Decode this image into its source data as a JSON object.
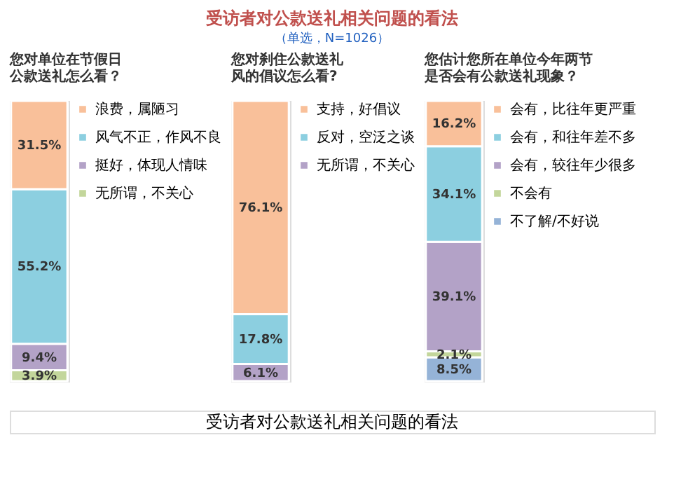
{
  "chart_data": [
    {
      "type": "bar",
      "stacked": true,
      "title": "您对单位在节假日公款送礼怎么看？",
      "annotations": [
        "受访者对公款送礼相关问题的看法",
        "（单选，N=1026）",
        "受访者对公款送礼相关问题的看法"
      ],
      "categories": [
        null
      ],
      "legend": "right",
      "series": [
        {
          "name": "无所谓，不关心",
          "color": "#c3d69b",
          "values": [
            3.9
          ],
          "value_labels": [
            "3.9%"
          ]
        },
        {
          "name": "挺好，体现人情味",
          "color": "#b3a2c7",
          "values": [
            9.4
          ],
          "value_labels": [
            "9.4%"
          ]
        },
        {
          "name": "风气不正，作风不良",
          "color": "#8ccfe0",
          "values": [
            55.2
          ],
          "value_labels": [
            "55.2%"
          ]
        },
        {
          "name": "浪费，属陋习",
          "color": "#f9c09a",
          "values": [
            31.5
          ],
          "value_labels": [
            "31.5%"
          ]
        }
      ]
    },
    {
      "type": "bar",
      "stacked": true,
      "title": "您对刹住公款送礼风的倡议怎么看?",
      "categories": [
        null
      ],
      "legend": "right",
      "series": [
        {
          "name": "无所谓，不关心",
          "color": "#b3a2c7",
          "values": [
            6.1
          ],
          "value_labels": [
            "6.1%"
          ]
        },
        {
          "name": "反对，空泛之谈",
          "color": "#8ccfe0",
          "values": [
            17.8
          ],
          "value_labels": [
            "17.8%"
          ]
        },
        {
          "name": "支持，好倡议",
          "color": "#f9c09a",
          "values": [
            76.1
          ],
          "value_labels": [
            "76.1%"
          ]
        }
      ]
    },
    {
      "type": "bar",
      "stacked": true,
      "title": "您估计您所在单位今年两节是否会有公款送礼现象？",
      "categories": [
        null
      ],
      "legend": "right",
      "series": [
        {
          "name": "不了解/不好说",
          "color": "#95b3d7",
          "values": [
            8.5
          ],
          "value_labels": [
            "8.5%"
          ]
        },
        {
          "name": "不会有",
          "color": "#c3d69b",
          "values": [
            2.1
          ],
          "value_labels": [
            "2.1%"
          ]
        },
        {
          "name": "会有，较往年少很多",
          "color": "#b3a2c7",
          "values": [
            39.1
          ],
          "value_labels": [
            "39.1%"
          ]
        },
        {
          "name": "会有，和往年差不多",
          "color": "#8ccfe0",
          "values": [
            34.1
          ],
          "value_labels": [
            "34.1%"
          ]
        },
        {
          "name": "会有，比往年更严重",
          "color": "#f9c09a",
          "values": [
            16.2
          ],
          "value_labels": [
            "16.2%"
          ]
        }
      ]
    }
  ]
}
